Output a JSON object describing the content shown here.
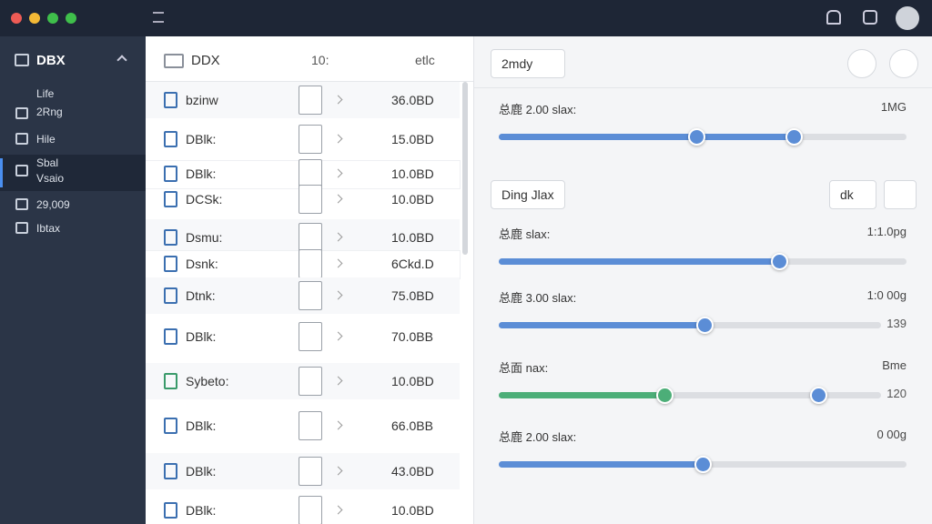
{
  "sidebar": {
    "title": "DBX",
    "items": [
      "Life",
      "2Rng",
      "Hile",
      "Sbal",
      "Vsaio",
      "29,009",
      "Ibtax"
    ]
  },
  "file_list": {
    "header": {
      "name": "DDX",
      "date": "10:",
      "sort": "etlc"
    },
    "rows": [
      [
        "bzinw",
        "36.0BD"
      ],
      [
        "DBlk:",
        "15.0BD"
      ],
      [
        "DBlk:",
        "10.0BD"
      ],
      [
        "DCSk:",
        "10.0BD"
      ],
      [
        "Dsmu:",
        "10.0BD"
      ],
      [
        "Dsnk:",
        "6Ckd.D"
      ],
      [
        "Dtnk:",
        "75.0BD"
      ],
      [
        "DBlk:",
        "70.0BB"
      ],
      [
        "Sybeto:",
        "10.0BD"
      ],
      [
        "DBlk:",
        "66.0BB"
      ],
      [
        "DBlk:",
        "43.0BD"
      ],
      [
        "DBlk:",
        "10.0BD"
      ]
    ]
  },
  "panel": {
    "add_button": "2mdy",
    "group_button": "Ding Jlax",
    "group_add": "dk",
    "sliders": [
      {
        "label": "总鹿 2.00 slax:",
        "value": "1MG"
      },
      {
        "label": "总鹿 slax:",
        "value": "1:1.0pg"
      },
      {
        "label": "总鹿 3.00 slax:",
        "value": "1:0 00g",
        "sub": "139"
      },
      {
        "label": "总面 nax:",
        "value": "Bme",
        "sub": "120"
      },
      {
        "label": "总鹿 2.00 slax:",
        "value": "0 00g"
      }
    ]
  }
}
